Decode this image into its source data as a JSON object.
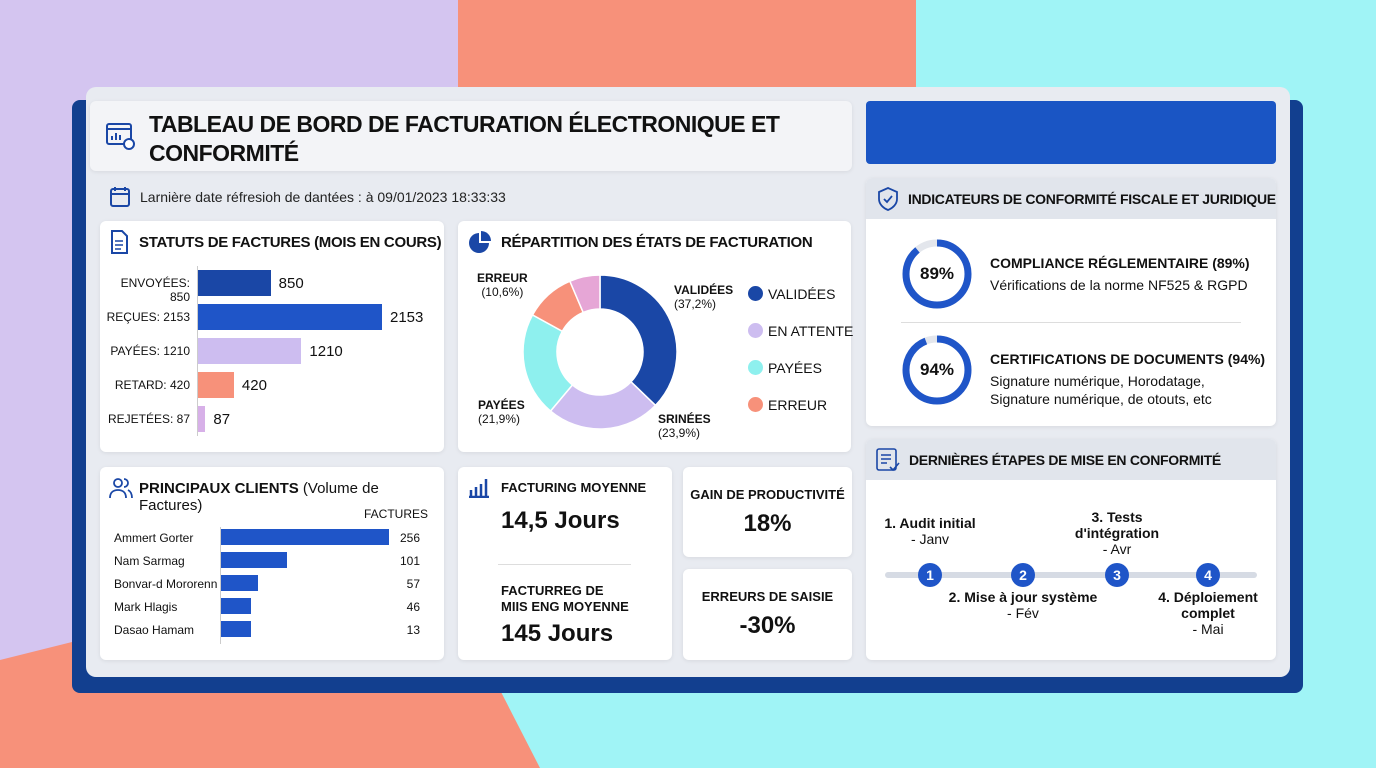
{
  "header": {
    "title_line1": "TABLEAU DE BORD DE FACTURATION ÉLECTRONIQUE ET",
    "title_line2": "CONFORMITÉ",
    "refresh": "Larnière date réfresioh de dantées : à 09/01/2023 18:33:33"
  },
  "colors": {
    "navy": "#123f8f",
    "blue": "#1f55c8",
    "dark_blue": "#1a47a6",
    "lavender": "#cdbdf0",
    "cyan": "#8ef0ee",
    "salmon": "#f7917a",
    "pink": "#e6a6d6"
  },
  "statuts": {
    "title": "STATUTS DE FACTURES (MOIS EN COURS)",
    "items": [
      {
        "label": "ENVOYÉES: 850",
        "value": 850,
        "color": "#1a47a6"
      },
      {
        "label": "REÇUES: 2153",
        "value": 2153,
        "color": "#1f55c8"
      },
      {
        "label": "PAYÉES: 1210",
        "value": 1210,
        "color": "#cdbdf0"
      },
      {
        "label": "RETARD: 420",
        "value": 420,
        "color": "#f7917a"
      },
      {
        "label": "REJETÉES: 87",
        "value": 87,
        "color": "#d7b0e8"
      }
    ]
  },
  "repartition": {
    "title": "RÉPARTITION DES ÉTATS DE FACTURATION",
    "slices": [
      {
        "label": "VALIDÉES",
        "pct": "(37,2%)",
        "value": 37.2,
        "color": "#1a47a6"
      },
      {
        "label": "SRINÉES",
        "pct": "(23,9%)",
        "value": 23.9,
        "color": "#cdbdf0"
      },
      {
        "label": "PAYÉES",
        "pct": "(21,9%)",
        "value": 21.9,
        "color": "#8ef0ee"
      },
      {
        "label": "ERREUR",
        "pct": "(10,6%)",
        "value": 10.6,
        "color": "#f7917a"
      }
    ],
    "legend": [
      {
        "label": "VALIDÉES",
        "color": "#1a47a6"
      },
      {
        "label": "EN ATTENTE",
        "color": "#cdbdf0"
      },
      {
        "label": "PAYÉES",
        "color": "#8ef0ee"
      },
      {
        "label": "ERREUR",
        "color": "#f7917a"
      }
    ]
  },
  "clients": {
    "title": "PRINCIPAUX CLIENTS",
    "subtitle": "(Volume de Factures)",
    "col": "FACTURES",
    "items": [
      {
        "name": "Ammert Gorter",
        "value": 256
      },
      {
        "name": "Nam Sarmag",
        "value": 101
      },
      {
        "name": "Bonvar-d Mororenn",
        "value": 57
      },
      {
        "name": "Mark Hlagis",
        "value": 46
      },
      {
        "name": "Dasao Hamam",
        "value": 13
      }
    ]
  },
  "kpi": {
    "facturing_label": "FACTURING MOYENNE",
    "facturing_value": "14,5 Jours",
    "mis_label1": "FACTURREG DE",
    "mis_label2": "MIIS ENG MOYENNE",
    "mis_value": "145 Jours",
    "gain_label": "GAIN DE PRODUCTIVITÉ",
    "gain_value": "18%",
    "err_label": "ERREURS DE SAISIE",
    "err_value": "-30%"
  },
  "conformite": {
    "title": "INDICATEURS DE CONFORMITÉ FISCALE ET JURIDIQUE",
    "items": [
      {
        "pct": 89,
        "pct_label": "89%",
        "title": "COMPLIANCE RÉGLEMENTAIRE (89%)",
        "desc1": "Vérifications de la norme NF525 & RGPD",
        "desc2": ""
      },
      {
        "pct": 94,
        "pct_label": "94%",
        "title": "CERTIFICATIONS DE DOCUMENTS (94%)",
        "desc1": "Signature numérique, Horodatage,",
        "desc2": "Signature numérique, de otouts, etc"
      }
    ]
  },
  "etapes": {
    "title": "DERNIÈRES ÉTAPES DE MISE EN CONFORMITÉ",
    "steps": [
      {
        "num": "1",
        "l1": "1. Audit initial",
        "l2": "",
        "l3": "- Janv"
      },
      {
        "num": "2",
        "l1": "2. Mise à jour système",
        "l2": "",
        "l3": "- Fév"
      },
      {
        "num": "3",
        "l1": "3. Tests",
        "l2": "d'intégration",
        "l3": "- Avr"
      },
      {
        "num": "4",
        "l1": "4. Déploiement",
        "l2": "complet",
        "l3": "- Mai"
      }
    ]
  }
}
